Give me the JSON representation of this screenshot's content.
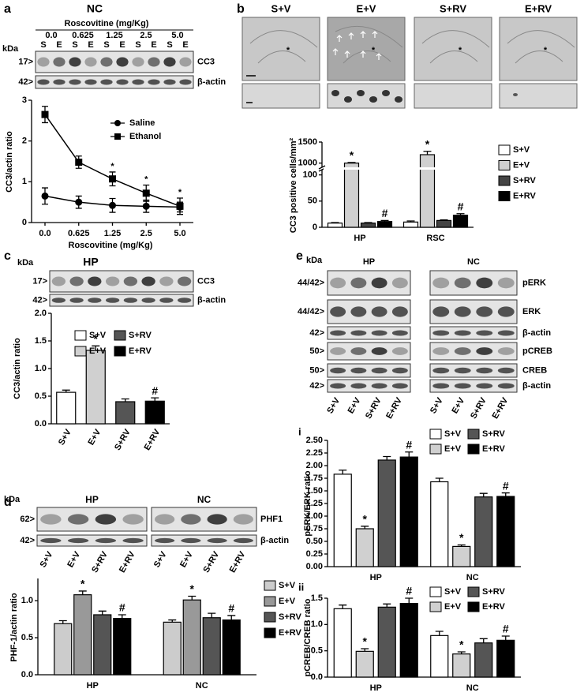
{
  "panels": [
    "a",
    "b",
    "c",
    "d",
    "e"
  ],
  "blot_a": {
    "title": "NC",
    "dose_label": "Roscovitine (mg/Kg)",
    "doses": [
      "0.0",
      "0.625",
      "1.25",
      "2.5",
      "5.0"
    ],
    "lanes": [
      "S",
      "E"
    ],
    "kda": "kDa",
    "rows": [
      {
        "size": "17>",
        "protein": "CC3"
      },
      {
        "size": "42>",
        "protein": "β-actin"
      }
    ]
  },
  "images_b": {
    "groups": [
      "S+V",
      "E+V",
      "S+RV",
      "E+RV"
    ],
    "marker": "*"
  },
  "blot_c": {
    "kda": "kDa",
    "title": "HP",
    "rows": [
      {
        "size": "17>",
        "protein": "CC3"
      },
      {
        "size": "42>",
        "protein": "β-actin"
      }
    ]
  },
  "blot_d": {
    "kda": "kDa",
    "groups": [
      "HP",
      "NC"
    ],
    "lanes": [
      "S+V",
      "E+V",
      "S+RV",
      "E+RV"
    ],
    "rows": [
      {
        "size": "62>",
        "protein": "PHF1"
      },
      {
        "size": "42>",
        "protein": "β-actin"
      }
    ]
  },
  "blot_e": {
    "kda": "kDa",
    "groups": [
      "HP",
      "NC"
    ],
    "lanes": [
      "S+V",
      "E+V",
      "S+RV",
      "E+RV"
    ],
    "rows": [
      {
        "size": "44/42>",
        "protein": "pERK"
      },
      {
        "size": "44/42>",
        "protein": "ERK"
      },
      {
        "size": "42>",
        "protein": "β-actin"
      },
      {
        "size": "50>",
        "protein": "pCREB"
      },
      {
        "size": "50>",
        "protein": "CREB"
      },
      {
        "size": "42>",
        "protein": "β-actin"
      }
    ]
  },
  "chart_data": [
    {
      "type": "line",
      "xlabel": "Roscovitine (mg/Kg)",
      "ylabel": "CC3/actin ratio",
      "categories": [
        "0.0",
        "0.625",
        "1.25",
        "2.5",
        "5.0"
      ],
      "ylim": [
        0,
        3
      ],
      "yticks": [
        0,
        1,
        2,
        3
      ],
      "series": [
        {
          "name": "Saline",
          "color": "#000000",
          "marker": "circle",
          "values": [
            0.65,
            0.5,
            0.42,
            0.4,
            0.38
          ],
          "errors": [
            0.2,
            0.15,
            0.17,
            0.15,
            0.12
          ]
        },
        {
          "name": "Ethanol",
          "color": "#000000",
          "marker": "square",
          "values": [
            2.65,
            1.48,
            1.07,
            0.72,
            0.4
          ],
          "errors": [
            0.2,
            0.15,
            0.17,
            0.2,
            0.2
          ],
          "annotations": [
            null,
            null,
            "*",
            "*",
            "*"
          ]
        }
      ]
    },
    {
      "type": "bar",
      "ylabel": "CC3 positive cells/mm²",
      "categories": [
        "HP",
        "RSC"
      ],
      "ylim": [
        0,
        1500
      ],
      "axis_break": [
        110,
        900
      ],
      "yticks": [
        0,
        50,
        100,
        1000,
        1500
      ],
      "series": [
        {
          "name": "S+V",
          "color": "#ffffff",
          "values": [
            8,
            10
          ],
          "errors": [
            1,
            2
          ]
        },
        {
          "name": "E+V",
          "color": "#d0d0d0",
          "values": [
            1000,
            1200
          ],
          "errors": [
            15,
            80
          ],
          "annotations": [
            "*",
            "*"
          ]
        },
        {
          "name": "S+RV",
          "color": "#444444",
          "values": [
            8,
            13
          ],
          "errors": [
            1,
            1
          ]
        },
        {
          "name": "E+RV",
          "color": "#000000",
          "values": [
            11,
            23
          ],
          "errors": [
            2,
            3
          ],
          "annotations": [
            "#",
            "#"
          ]
        }
      ]
    },
    {
      "type": "bar",
      "ylabel": "CC3/actin ratio",
      "categories": [
        "S+V",
        "E+V",
        "S+RV",
        "E+RV"
      ],
      "colors": [
        "#ffffff",
        "#d0d0d0",
        "#555555",
        "#000000"
      ],
      "values": [
        0.57,
        1.33,
        0.4,
        0.41
      ],
      "errors": [
        0.04,
        0.08,
        0.05,
        0.06
      ],
      "annotations": [
        null,
        "*",
        null,
        "#"
      ],
      "ylim": [
        0,
        2
      ],
      "yticks": [
        {
          "value": 0,
          "label": "0.0"
        },
        {
          "value": 0.5,
          "label": "0.5"
        },
        {
          "value": 1,
          "label": "1.0"
        },
        {
          "value": 1.5,
          "label": "1.5"
        },
        {
          "value": 2,
          "label": "2.0"
        }
      ]
    },
    {
      "type": "bar",
      "ylabel": "PHF-1/actin ratio",
      "categories": [
        "HP",
        "NC"
      ],
      "ylim": [
        0,
        1.3
      ],
      "yticks": [
        {
          "value": 0,
          "label": "0.0"
        },
        {
          "value": 0.5,
          "label": "0.5"
        },
        {
          "value": 1,
          "label": "1.0"
        }
      ],
      "series": [
        {
          "name": "S+V",
          "color": "#cccccc",
          "values": [
            0.69,
            0.71
          ],
          "errors": [
            0.04,
            0.03
          ]
        },
        {
          "name": "E+V",
          "color": "#999999",
          "values": [
            1.08,
            1.01
          ],
          "errors": [
            0.05,
            0.05
          ],
          "annotations": [
            "*",
            "*"
          ]
        },
        {
          "name": "S+RV",
          "color": "#555555",
          "values": [
            0.81,
            0.77
          ],
          "errors": [
            0.05,
            0.06
          ]
        },
        {
          "name": "E+RV",
          "color": "#000000",
          "values": [
            0.76,
            0.74
          ],
          "errors": [
            0.05,
            0.06
          ],
          "annotations": [
            "#",
            "#"
          ]
        }
      ]
    },
    {
      "type": "bar",
      "panel": "i",
      "ylabel": "pERK/ERK ratio",
      "categories": [
        "HP",
        "NC"
      ],
      "ylim": [
        0,
        2.5
      ],
      "yticks": [
        {
          "value": 0,
          "label": "0.00"
        },
        {
          "value": 0.25,
          "label": "0.25"
        },
        {
          "value": 0.5,
          "label": "0.50"
        },
        {
          "value": 0.75,
          "label": "0.75"
        },
        {
          "value": 1,
          "label": "1.00"
        },
        {
          "value": 1.25,
          "label": "1.25"
        },
        {
          "value": 1.5,
          "label": "1.50"
        },
        {
          "value": 1.75,
          "label": "1.75"
        },
        {
          "value": 2,
          "label": "2.00"
        },
        {
          "value": 2.25,
          "label": "2.25"
        },
        {
          "value": 2.5,
          "label": "2.50"
        }
      ],
      "series": [
        {
          "name": "S+V",
          "color": "#ffffff",
          "values": [
            1.83,
            1.68
          ],
          "errors": [
            0.08,
            0.07
          ]
        },
        {
          "name": "E+V",
          "color": "#d0d0d0",
          "values": [
            0.75,
            0.4
          ],
          "errors": [
            0.05,
            0.03
          ],
          "annotations": [
            "*",
            "*"
          ]
        },
        {
          "name": "S+RV",
          "color": "#555555",
          "values": [
            2.11,
            1.38
          ],
          "errors": [
            0.07,
            0.07
          ]
        },
        {
          "name": "E+RV",
          "color": "#000000",
          "values": [
            2.17,
            1.39
          ],
          "errors": [
            0.1,
            0.07
          ],
          "annotations": [
            "#",
            "#"
          ]
        }
      ]
    },
    {
      "type": "bar",
      "panel": "ii",
      "ylabel": "pCREB/CREB ratio",
      "categories": [
        "HP",
        "NC"
      ],
      "ylim": [
        0,
        1.5
      ],
      "yticks": [
        {
          "value": 0,
          "label": "0.0"
        },
        {
          "value": 0.5,
          "label": "0.5"
        },
        {
          "value": 1,
          "label": "1.0"
        },
        {
          "value": 1.5,
          "label": "1.5"
        }
      ],
      "series": [
        {
          "name": "S+V",
          "color": "#ffffff",
          "values": [
            1.3,
            0.79
          ],
          "errors": [
            0.07,
            0.08
          ]
        },
        {
          "name": "E+V",
          "color": "#d0d0d0",
          "values": [
            0.49,
            0.44
          ],
          "errors": [
            0.05,
            0.04
          ],
          "annotations": [
            "*",
            "*"
          ]
        },
        {
          "name": "S+RV",
          "color": "#555555",
          "values": [
            1.33,
            0.65
          ],
          "errors": [
            0.06,
            0.08
          ]
        },
        {
          "name": "E+RV",
          "color": "#000000",
          "values": [
            1.4,
            0.7
          ],
          "errors": [
            0.1,
            0.08
          ],
          "annotations": [
            "#",
            "#"
          ]
        }
      ]
    }
  ]
}
